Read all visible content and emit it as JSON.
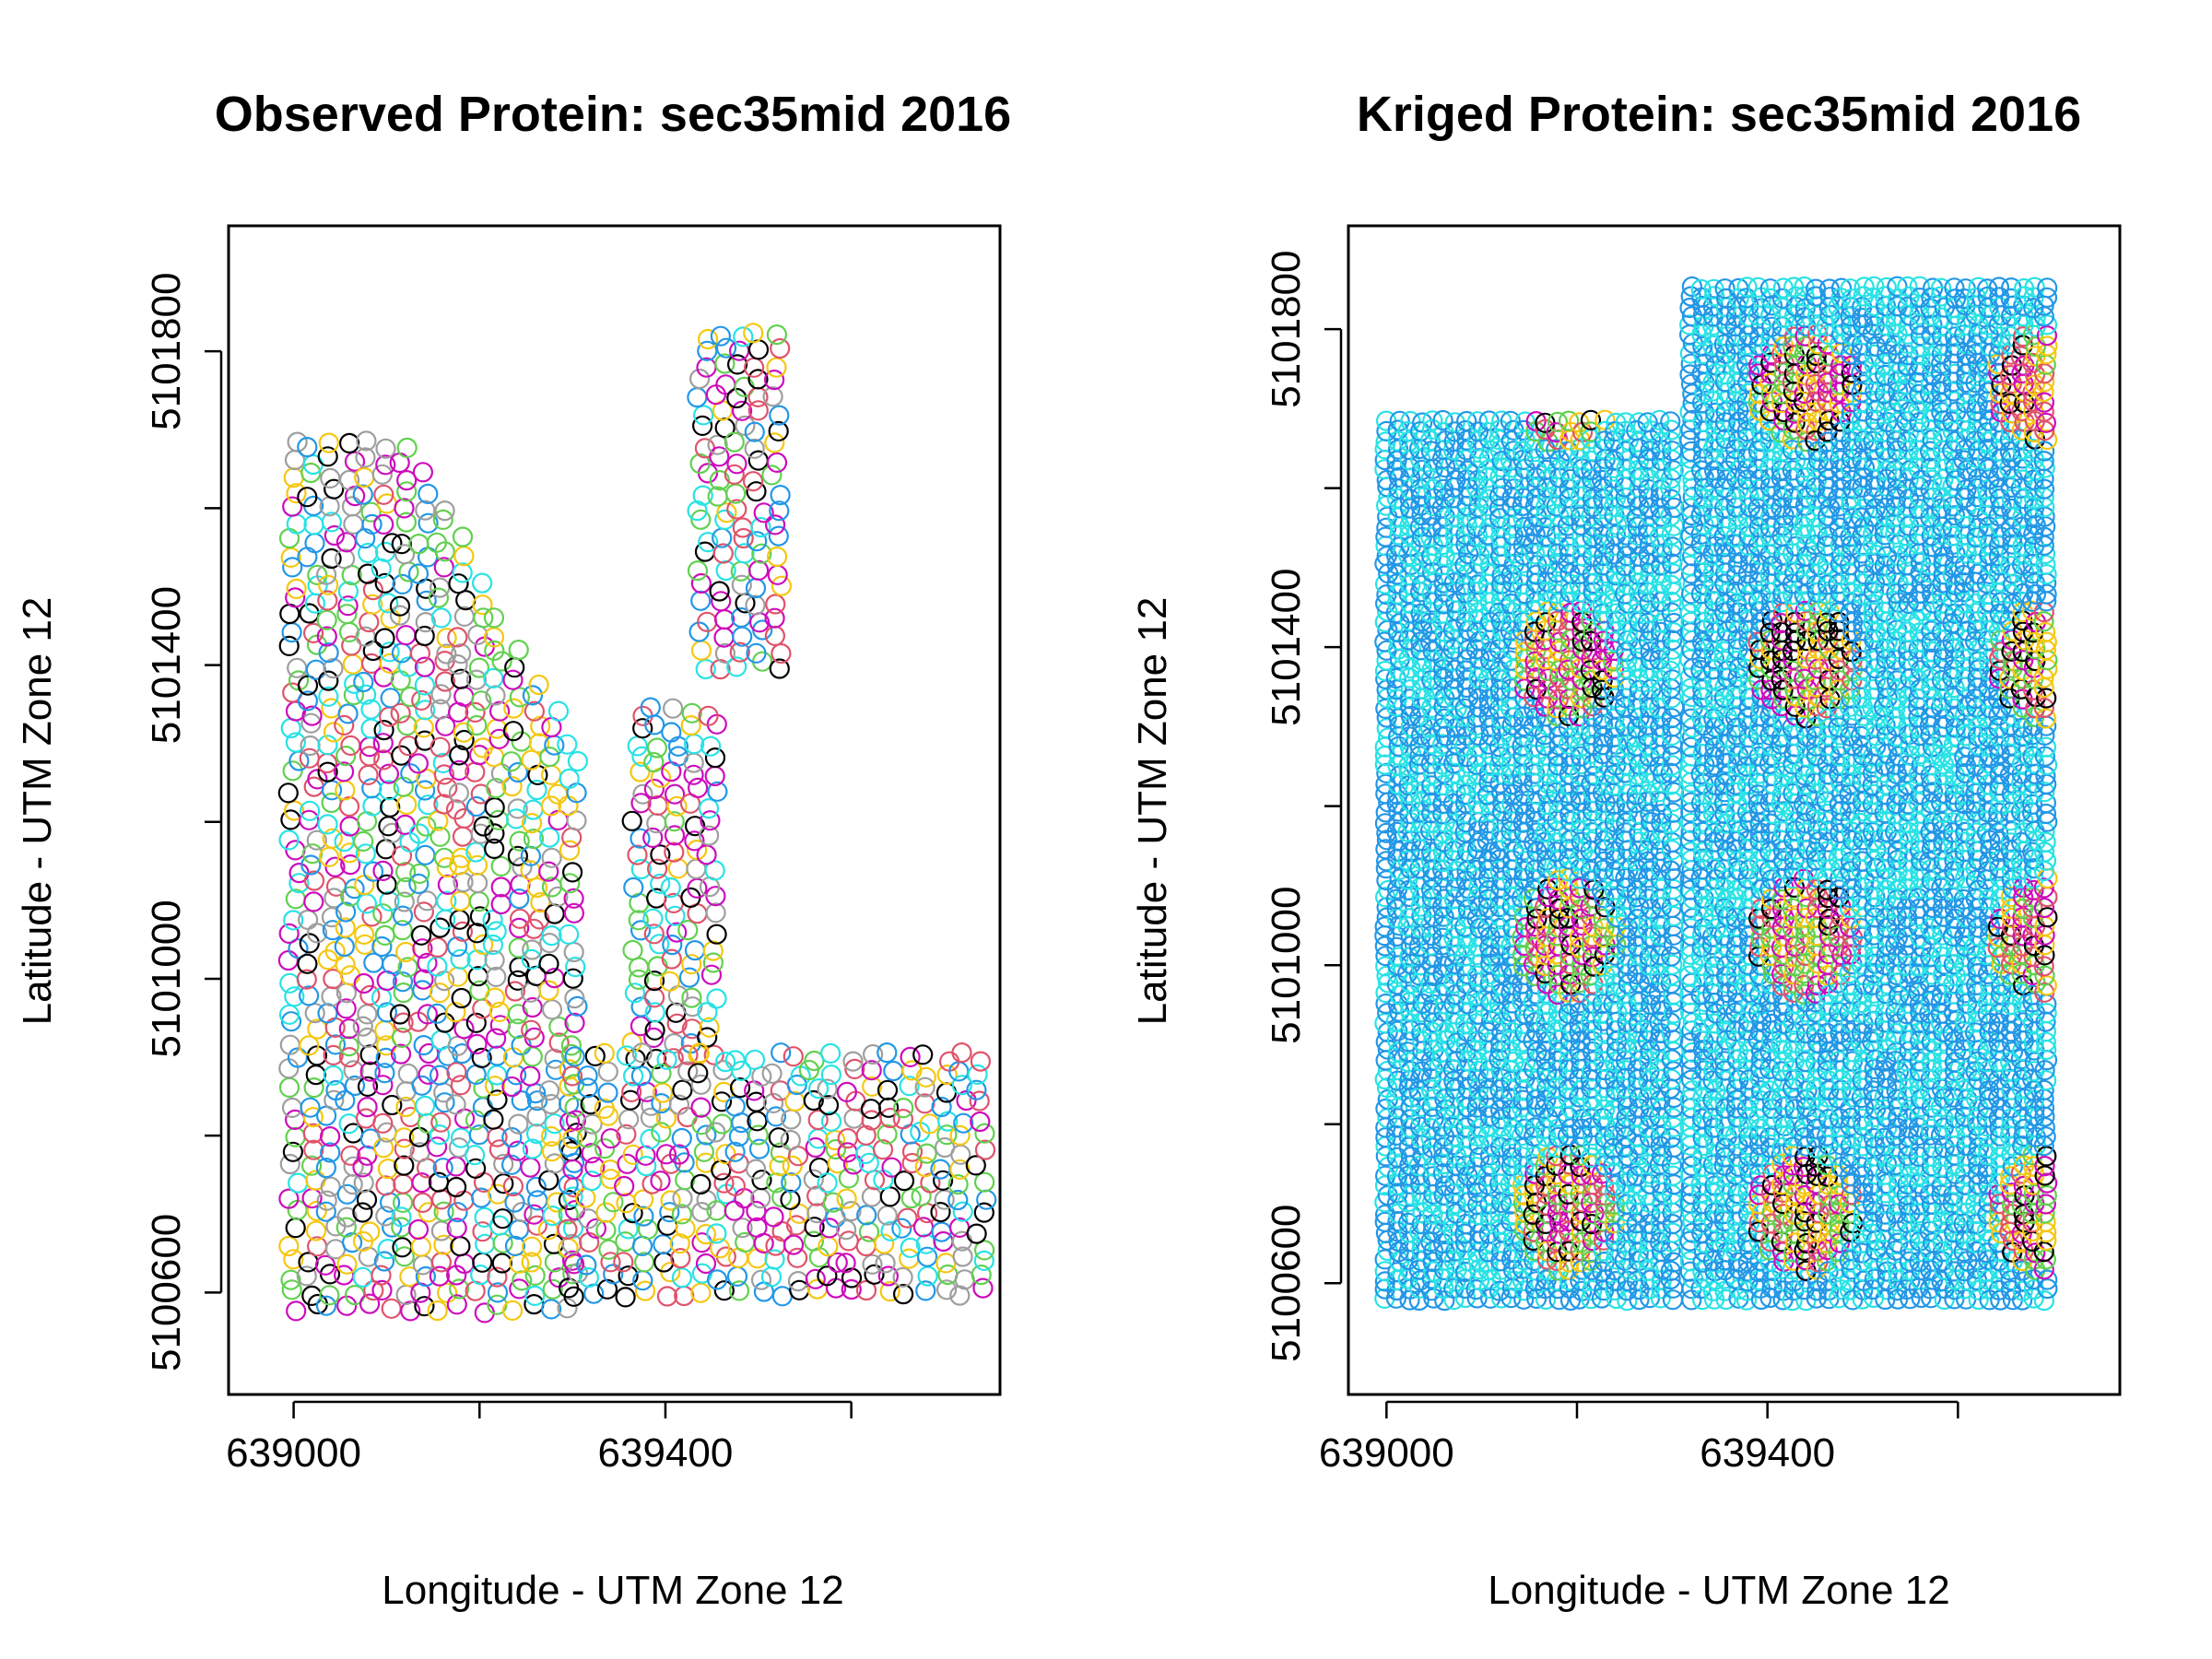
{
  "chart_data": [
    {
      "type": "scatter",
      "title": "Observed Protein: sec35mid 2016",
      "xlabel": "Longitude - UTM Zone 12",
      "ylabel": "Latitude - UTM Zone 12",
      "xlim": [
        638930,
        639760
      ],
      "ylim": [
        5100470,
        5101960
      ],
      "x_ticks": [
        639000,
        639200,
        639400,
        639600
      ],
      "x_tick_labels": [
        "639000",
        "",
        "639400",
        ""
      ],
      "y_ticks": [
        5100600,
        5100800,
        5101000,
        5101200,
        5101400,
        5101600,
        5101800
      ],
      "y_tick_labels": [
        "5100600",
        "",
        "5101000",
        "",
        "5101400",
        "",
        "5101800"
      ],
      "marker": "open-circle",
      "legend": "none",
      "grid": false,
      "color_classes": [
        "#000000",
        "#DF536B",
        "#61D04F",
        "#2297E6",
        "#28E2E5",
        "#CD0BBC",
        "#F5C710",
        "#9E9E9E"
      ],
      "field_regions": [
        {
          "name": "west block",
          "x": [
            639000,
            639300
          ],
          "y_ranges": [
            [
              5100580,
              5101690
            ]
          ],
          "taper_x": [
            639120,
            639300
          ],
          "taper_top": [
            5101690,
            5101300
          ]
        },
        {
          "name": "east strip",
          "x": [
            639370,
            639460
          ],
          "y_ranges": [
            [
              5100900,
              5101350
            ]
          ]
        },
        {
          "name": "south-east apron",
          "x": [
            639300,
            639740
          ],
          "y_ranges": [
            [
              5100590,
              5100900
            ]
          ]
        },
        {
          "name": "north transect",
          "x": [
            639440,
            639520
          ],
          "y_ranges": [
            [
              5101400,
              5101830
            ]
          ]
        }
      ]
    },
    {
      "type": "scatter",
      "title": "Kriged Protein: sec35mid 2016",
      "xlabel": "Longitude - UTM Zone 12",
      "ylabel": "Latitude - UTM Zone 12",
      "xlim": [
        638960,
        639770
      ],
      "ylim": [
        5100460,
        5101930
      ],
      "x_ticks": [
        639000,
        639200,
        639400,
        639600
      ],
      "x_tick_labels": [
        "639000",
        "",
        "639400",
        ""
      ],
      "y_ticks": [
        5100600,
        5100800,
        5101000,
        5101200,
        5101400,
        5101600,
        5101800
      ],
      "y_tick_labels": [
        "5100600",
        "",
        "5101000",
        "",
        "5101400",
        "",
        "5101800"
      ],
      "marker": "open-circle",
      "legend": "none",
      "grid": false,
      "color_classes": [
        "#000000",
        "#DF536B",
        "#61D04F",
        "#2297E6",
        "#28E2E5",
        "#CD0BBC",
        "#F5C710",
        "#9E9E9E"
      ],
      "field_regions": [
        {
          "name": "west block",
          "x": [
            639000,
            639300
          ],
          "y_ranges": [
            [
              5100570,
              5101690
            ]
          ]
        },
        {
          "name": "east block",
          "x": [
            639320,
            639700
          ],
          "y_ranges": [
            [
              5100570,
              5101860
            ]
          ]
        }
      ]
    }
  ]
}
